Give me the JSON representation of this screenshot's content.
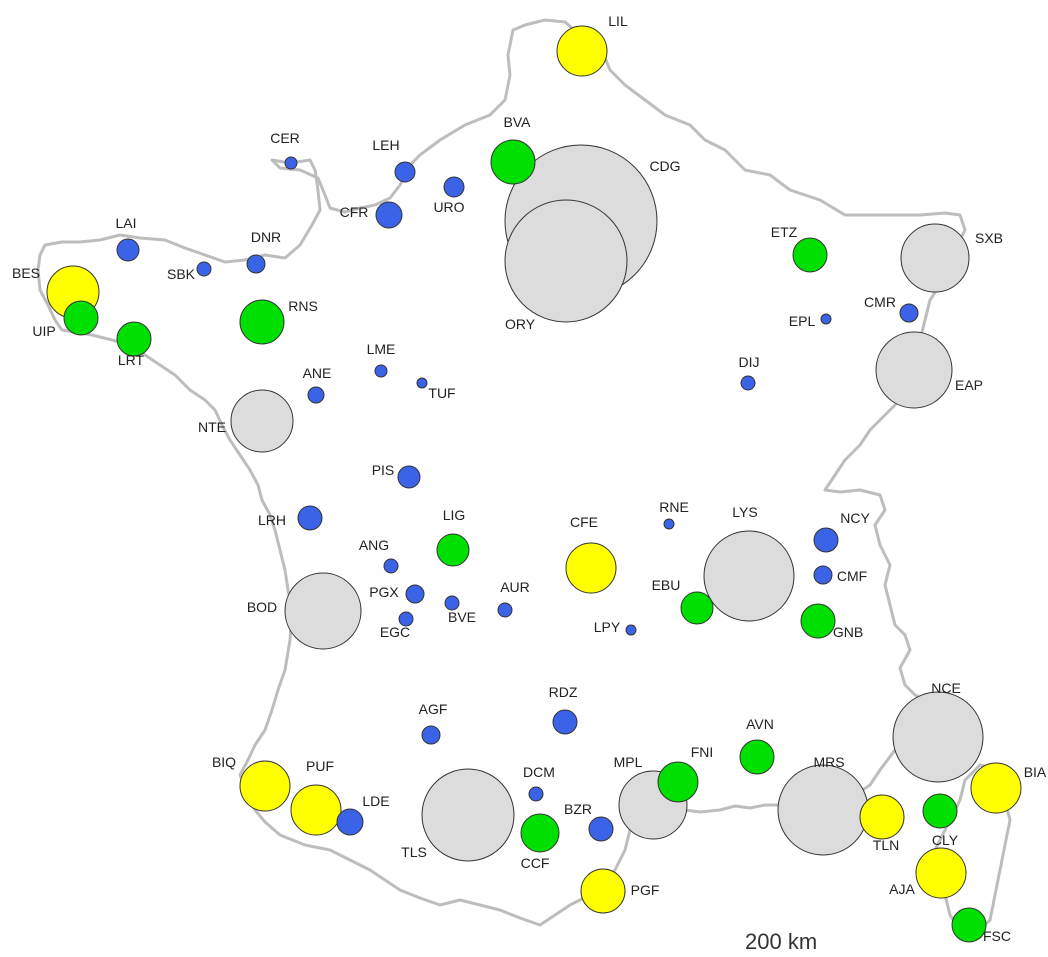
{
  "map": {
    "scale_label": "200 km",
    "colors": {
      "grey": "#dcdcdc",
      "yellow": "#ffff00",
      "green": "#00e000",
      "blue": "#3b63e8",
      "outline": "#bdbdbd"
    },
    "airports": [
      {
        "code": "CDG",
        "category": "grey"
      },
      {
        "code": "ORY",
        "category": "grey"
      },
      {
        "code": "NCE",
        "category": "grey"
      },
      {
        "code": "MRS",
        "category": "grey"
      },
      {
        "code": "LYS",
        "category": "grey"
      },
      {
        "code": "TLS",
        "category": "grey"
      },
      {
        "code": "BOD",
        "category": "grey"
      },
      {
        "code": "NTE",
        "category": "grey"
      },
      {
        "code": "SXB",
        "category": "grey"
      },
      {
        "code": "EAP",
        "category": "grey"
      },
      {
        "code": "MPL",
        "category": "grey"
      },
      {
        "code": "LIL",
        "category": "yellow"
      },
      {
        "code": "BES",
        "category": "yellow"
      },
      {
        "code": "CFE",
        "category": "yellow"
      },
      {
        "code": "BIQ",
        "category": "yellow"
      },
      {
        "code": "PUF",
        "category": "yellow"
      },
      {
        "code": "PGF",
        "category": "yellow"
      },
      {
        "code": "TLN",
        "category": "yellow"
      },
      {
        "code": "BIA",
        "category": "yellow"
      },
      {
        "code": "AJA",
        "category": "yellow"
      },
      {
        "code": "BVA",
        "category": "green"
      },
      {
        "code": "RNS",
        "category": "green"
      },
      {
        "code": "UIP",
        "category": "green"
      },
      {
        "code": "LRT",
        "category": "green"
      },
      {
        "code": "ETZ",
        "category": "green"
      },
      {
        "code": "LIG",
        "category": "green"
      },
      {
        "code": "EBU",
        "category": "green"
      },
      {
        "code": "GNB",
        "category": "green"
      },
      {
        "code": "AVN",
        "category": "green"
      },
      {
        "code": "FNI",
        "category": "green"
      },
      {
        "code": "CCF",
        "category": "green"
      },
      {
        "code": "CLY",
        "category": "green"
      },
      {
        "code": "FSC",
        "category": "green"
      },
      {
        "code": "CER",
        "category": "blue"
      },
      {
        "code": "LEH",
        "category": "blue"
      },
      {
        "code": "URO",
        "category": "blue"
      },
      {
        "code": "CFR",
        "category": "blue"
      },
      {
        "code": "LAI",
        "category": "blue"
      },
      {
        "code": "DNR",
        "category": "blue"
      },
      {
        "code": "SBK",
        "category": "blue"
      },
      {
        "code": "LME",
        "category": "blue"
      },
      {
        "code": "ANE",
        "category": "blue"
      },
      {
        "code": "TUF",
        "category": "blue"
      },
      {
        "code": "PIS",
        "category": "blue"
      },
      {
        "code": "LRH",
        "category": "blue"
      },
      {
        "code": "ANG",
        "category": "blue"
      },
      {
        "code": "PGX",
        "category": "blue"
      },
      {
        "code": "EGC",
        "category": "blue"
      },
      {
        "code": "BVE",
        "category": "blue"
      },
      {
        "code": "AUR",
        "category": "blue"
      },
      {
        "code": "RNE",
        "category": "blue"
      },
      {
        "code": "LPY",
        "category": "blue"
      },
      {
        "code": "NCY",
        "category": "blue"
      },
      {
        "code": "CMF",
        "category": "blue"
      },
      {
        "code": "CMR",
        "category": "blue"
      },
      {
        "code": "EPL",
        "category": "blue"
      },
      {
        "code": "DIJ",
        "category": "blue"
      },
      {
        "code": "RDZ",
        "category": "blue"
      },
      {
        "code": "AGF",
        "category": "blue"
      },
      {
        "code": "DCM",
        "category": "blue"
      },
      {
        "code": "BZR",
        "category": "blue"
      },
      {
        "code": "LDE",
        "category": "blue"
      }
    ]
  }
}
